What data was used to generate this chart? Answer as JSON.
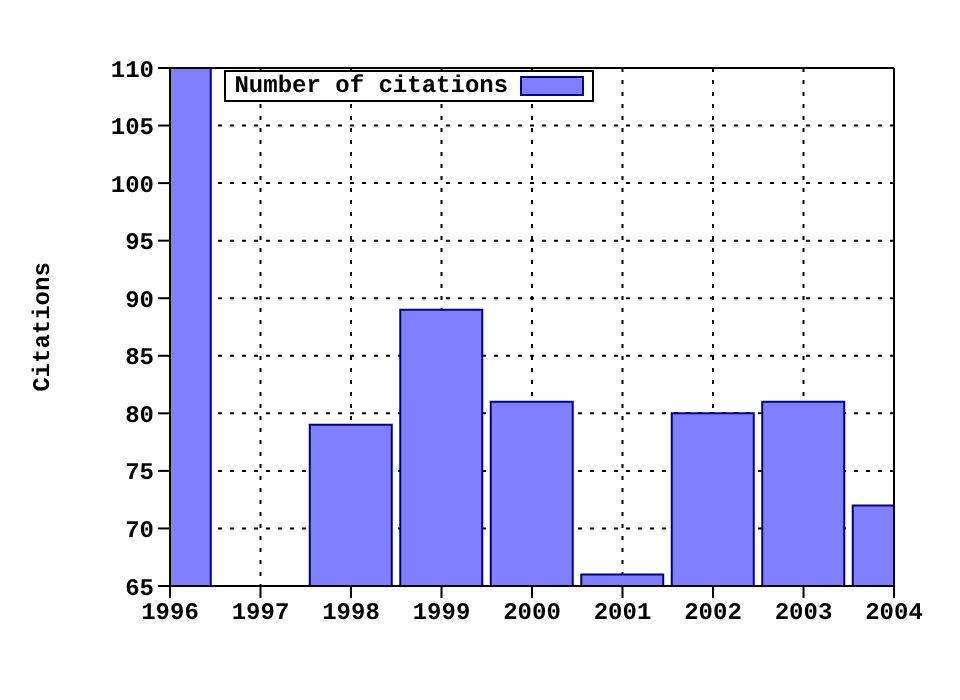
{
  "chart_data": {
    "type": "bar",
    "ylabel": "Citations",
    "x": [
      1996,
      1997,
      1998,
      1999,
      2000,
      2001,
      2002,
      2003,
      2004
    ],
    "series": [
      {
        "name": "Number of citations",
        "color": "#8080ff",
        "values": [
          110,
          null,
          79,
          89,
          81,
          66,
          80,
          81,
          72
        ]
      }
    ],
    "xlim": [
      1996,
      2004
    ],
    "xticks": [
      1996,
      1997,
      1998,
      1999,
      2000,
      2001,
      2002,
      2003,
      2004
    ],
    "ylim": [
      65,
      110
    ],
    "yticks": [
      65,
      70,
      75,
      80,
      85,
      90,
      95,
      100,
      105,
      110
    ],
    "grid": true,
    "legend": "top left"
  }
}
